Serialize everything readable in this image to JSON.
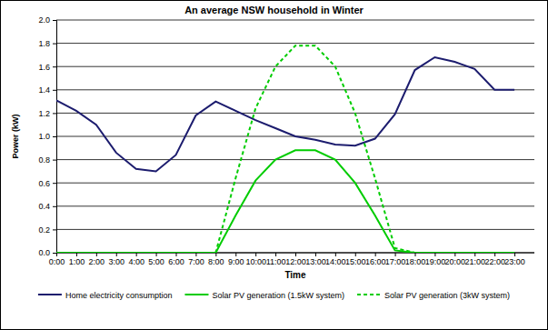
{
  "chart_data": {
    "type": "line",
    "title": "An average NSW household in Winter",
    "x_label": "Time",
    "y_label": "Power (kW)",
    "categories": [
      "0:00",
      "1:00",
      "2:00",
      "3:00",
      "4:00",
      "5:00",
      "6:00",
      "7:00",
      "8:00",
      "9:00",
      "10:00",
      "11:00",
      "12:00",
      "13:00",
      "14:00",
      "15:00",
      "16:00",
      "17:00",
      "18:00",
      "19:00",
      "20:00",
      "21:00",
      "22:00",
      "23:00"
    ],
    "series": [
      {
        "name": "Home electricity consumption",
        "color": "#1c1c6e",
        "line_style": "solid",
        "values": [
          1.31,
          1.22,
          1.1,
          0.86,
          0.72,
          0.7,
          0.84,
          1.18,
          1.3,
          1.22,
          1.14,
          1.07,
          1.0,
          0.97,
          0.93,
          0.92,
          0.98,
          1.19,
          1.57,
          1.68,
          1.64,
          1.58,
          1.4,
          1.4
        ]
      },
      {
        "name": "Solar PV generation (1.5kW system)",
        "color": "#00cc00",
        "line_style": "solid",
        "values": [
          0,
          0,
          0,
          0,
          0,
          0,
          0,
          0,
          0,
          0.32,
          0.62,
          0.8,
          0.88,
          0.88,
          0.8,
          0.6,
          0.32,
          0.02,
          0,
          0,
          0,
          0,
          0,
          0
        ]
      },
      {
        "name": "Solar PV generation (3kW system)",
        "color": "#00cc00",
        "line_style": "dashed",
        "values": [
          0,
          0,
          0,
          0,
          0,
          0,
          0,
          0,
          0,
          0.64,
          1.24,
          1.6,
          1.78,
          1.78,
          1.6,
          1.2,
          0.64,
          0.04,
          0,
          0,
          0,
          0,
          0,
          0
        ]
      }
    ],
    "ylim": [
      0,
      2
    ],
    "yticks": [
      {
        "value": 0,
        "label": "0.0"
      },
      0.2,
      0.4,
      0.6,
      0.8,
      {
        "value": 1,
        "label": "1.0"
      },
      1.2,
      1.4,
      1.6,
      1.8,
      {
        "value": 2,
        "label": "2.0"
      }
    ],
    "grid": true,
    "legend": "bottom"
  }
}
